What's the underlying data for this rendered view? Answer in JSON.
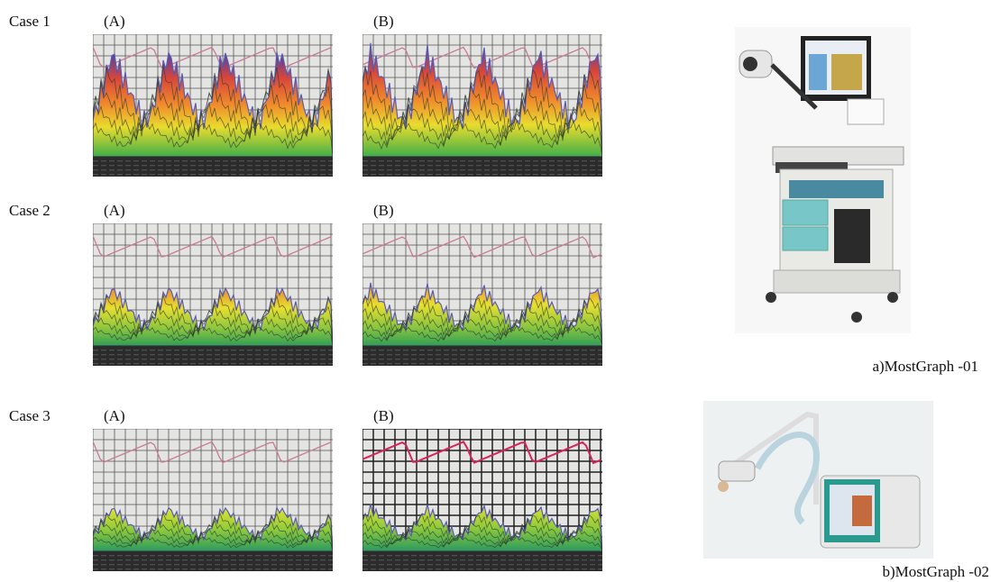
{
  "cases": [
    {
      "label": "Case 1",
      "panels": [
        "(A)",
        "(B)"
      ]
    },
    {
      "label": "Case 2",
      "panels": [
        "(A)",
        "(B)"
      ]
    },
    {
      "label": "Case 3",
      "panels": [
        "(A)",
        "(B)"
      ]
    }
  ],
  "devices": [
    {
      "caption": "a)MostGraph -01"
    },
    {
      "caption": "b)MostGraph -02"
    }
  ]
}
